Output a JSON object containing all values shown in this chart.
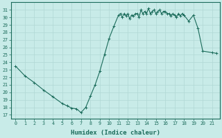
{
  "xlabel": "Humidex (Indice chaleur)",
  "ylabel": "",
  "background_color": "#c8ebe8",
  "grid_color": "#b0d8d4",
  "line_color": "#1a6b5a",
  "marker_color": "#1a6b5a",
  "xlim": [
    -0.5,
    21.8
  ],
  "ylim": [
    16.5,
    32.0
  ],
  "yticks": [
    17,
    18,
    19,
    20,
    21,
    22,
    23,
    24,
    25,
    26,
    27,
    28,
    29,
    30,
    31
  ],
  "xticks": [
    0,
    1,
    2,
    3,
    4,
    5,
    6,
    7,
    8,
    9,
    10,
    11,
    12,
    13,
    14,
    15,
    16,
    17,
    18,
    19,
    20,
    21
  ],
  "x": [
    0,
    1,
    2,
    3,
    4,
    5,
    5.5,
    6,
    6.5,
    7,
    7.5,
    8,
    8.5,
    9,
    9.5,
    10,
    10.5,
    11,
    11.2,
    11.4,
    11.6,
    11.8,
    12,
    12.2,
    12.4,
    12.6,
    12.8,
    13,
    13.2,
    13.4,
    13.6,
    13.8,
    14,
    14.2,
    14.4,
    14.6,
    14.8,
    15,
    15.2,
    15.4,
    15.6,
    15.8,
    16,
    16.2,
    16.4,
    16.6,
    16.8,
    17,
    17.2,
    17.4,
    17.6,
    17.8,
    18,
    18.5,
    19,
    19.5,
    20,
    21,
    21.5
  ],
  "y": [
    23.5,
    22.2,
    21.3,
    20.3,
    19.4,
    18.5,
    18.2,
    17.9,
    17.8,
    17.3,
    18.0,
    19.5,
    21.0,
    22.8,
    25.0,
    27.2,
    28.8,
    30.3,
    30.5,
    30.0,
    30.5,
    30.2,
    30.5,
    29.8,
    30.3,
    30.2,
    30.5,
    30.5,
    30.0,
    31.0,
    30.5,
    30.8,
    30.5,
    31.2,
    30.5,
    30.8,
    31.0,
    30.5,
    30.8,
    31.0,
    30.5,
    30.8,
    30.8,
    30.5,
    30.5,
    30.2,
    30.5,
    30.3,
    30.0,
    30.5,
    30.2,
    30.5,
    30.3,
    29.5,
    30.3,
    28.5,
    25.5,
    25.3,
    25.2
  ]
}
